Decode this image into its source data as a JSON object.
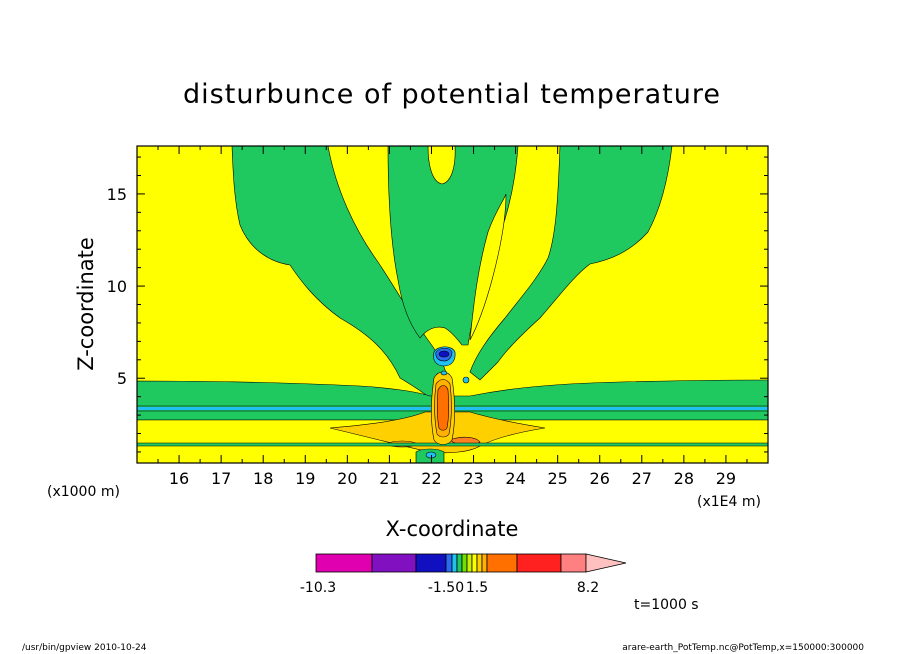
{
  "chart_data": {
    "type": "heatmap",
    "title": "disturbunce of potential temperature",
    "xlabel": "X-coordinate",
    "ylabel": "Z-coordinate",
    "x_units_label": "(x1E4 m)",
    "y_units_label": "(x1000 m)",
    "xlim": [
      15,
      30
    ],
    "ylim": [
      0.4,
      17.6
    ],
    "x_ticks": [
      "16",
      "17",
      "18",
      "19",
      "20",
      "21",
      "22",
      "23",
      "24",
      "25",
      "26",
      "27",
      "28",
      "29"
    ],
    "y_ticks": [
      "5",
      "10",
      "15"
    ],
    "colorbar": {
      "labels": [
        "-10.3",
        "-1.50",
        "1.5",
        "8.2"
      ],
      "colors": [
        "#e000b0",
        "#8010c0",
        "#1010c0",
        "#2a6cf0",
        "#20c0f0",
        "#20c860",
        "#70e000",
        "#c8f000",
        "#ffff00",
        "#ffd000",
        "#ffb000",
        "#ff7000",
        "#ff2020",
        "#ff8080",
        "#ffc0c0"
      ]
    },
    "annotation": "t=1000 s",
    "footer_left": "/usr/bin/gpview   2010-10-24",
    "footer_right": "arare-earth_PotTemp.nc@PotTemp,x=150000:300000"
  }
}
